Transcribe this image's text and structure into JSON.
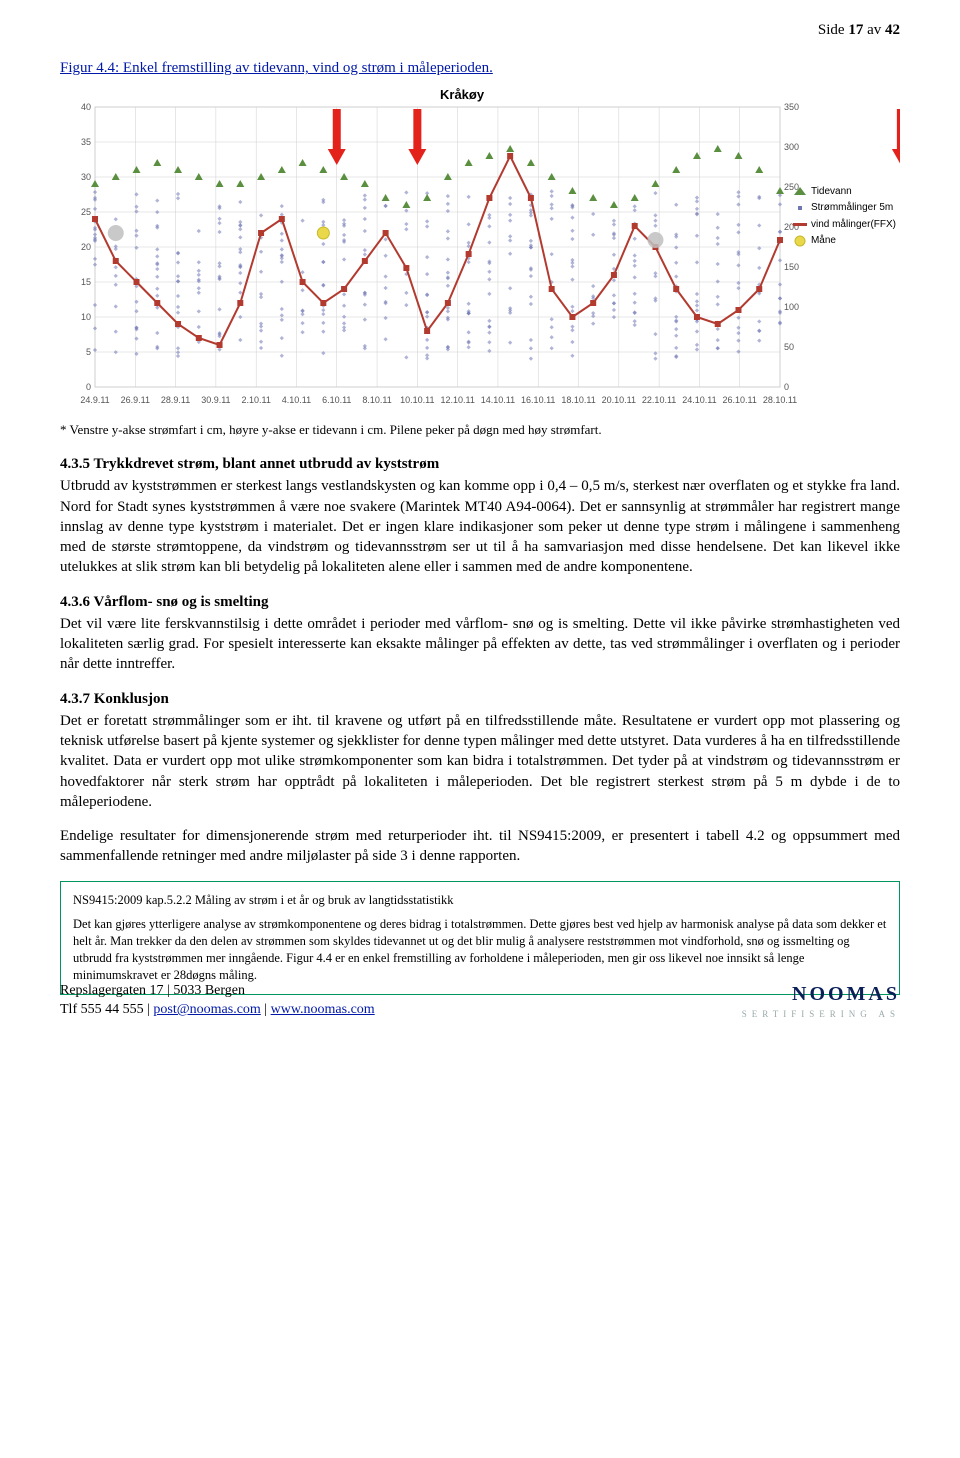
{
  "header": {
    "text_prefix": "Side ",
    "current": "17",
    "middle": " av ",
    "total": "42"
  },
  "figure": {
    "caption": "Figur 4.4: Enkel fremstilling av tidevann, vind og strøm i måleperioden.",
    "title": "Kråkøy",
    "note": "* Venstre y-akse strømfart i cm, høyre y-akse er tidevann i cm. Pilene peker på døgn med høy strømfart.",
    "chart": {
      "type": "line+scatter",
      "background_color": "#ffffff",
      "grid_color": "#cfcfcf",
      "left_axis": {
        "label": "",
        "min": 0,
        "max": 40,
        "ticks": [
          0,
          5,
          10,
          15,
          20,
          25,
          30,
          35,
          40
        ]
      },
      "right_axis": {
        "label": "",
        "min": 0,
        "max": 350,
        "ticks": [
          0,
          50,
          100,
          150,
          200,
          250,
          300,
          350
        ]
      },
      "x_labels": [
        "24.9.11",
        "26.9.11",
        "28.9.11",
        "30.9.11",
        "2.10.11",
        "4.10.11",
        "6.10.11",
        "8.10.11",
        "10.10.11",
        "12.10.11",
        "14.10.11",
        "16.10.11",
        "18.10.11",
        "20.10.11",
        "22.10.11",
        "24.10.11",
        "26.10.11",
        "28.10.11"
      ],
      "series": {
        "tidevann": {
          "label": "Tidevann",
          "color": "#5a8f3f",
          "marker": "triangle",
          "marker_size": 5,
          "y": [
            29,
            30,
            31,
            32,
            31,
            30,
            29,
            29,
            30,
            31,
            32,
            31,
            30,
            29,
            27,
            26,
            27,
            30,
            32,
            33,
            34,
            32,
            30,
            28,
            27,
            26,
            27,
            29,
            31,
            33,
            34,
            33,
            31,
            28
          ]
        },
        "strom5m": {
          "label": "Strømmålinger 5m",
          "color": "#6f76b4",
          "marker": "scatter-band",
          "band_top": 28,
          "band_bottom": 4
        },
        "vind": {
          "label": "vind målinger(FFX)",
          "color": "#b23a2f",
          "marker": "square",
          "line_width": 2,
          "y": [
            24,
            18,
            15,
            12,
            9,
            7,
            6,
            12,
            22,
            24,
            15,
            12,
            14,
            18,
            22,
            17,
            8,
            12,
            19,
            27,
            33,
            27,
            14,
            10,
            12,
            16,
            23,
            20,
            14,
            10,
            9,
            11,
            14,
            21
          ]
        },
        "moon": {
          "label": "Måne",
          "color": "#e9d94a",
          "marker": "circle",
          "size": 12,
          "points": [
            {
              "x": 11,
              "y": 22
            }
          ]
        },
        "grey_circles": {
          "color": "#bfbfbf",
          "size": 16,
          "points": [
            {
              "x": 1,
              "y": 22
            },
            {
              "x": 27,
              "y": 21
            }
          ]
        }
      },
      "arrows": {
        "color": "#e3231b",
        "x_positions": [
          6,
          8,
          20
        ]
      }
    }
  },
  "sections": {
    "s435": {
      "title": "4.3.5 Trykkdrevet strøm, blant annet utbrudd av kyststrøm",
      "body": "Utbrudd av kyststrømmen er sterkest langs vestlandskysten og kan komme opp i 0,4 – 0,5 m/s, sterkest nær overflaten og et stykke fra land. Nord for Stadt synes kyststrømmen å være noe svakere (Marintek MT40 A94-0064). Det er sannsynlig at strømmåler har registrert mange innslag av denne type kyststrøm i materialet. Det er ingen klare indikasjoner som peker ut denne type strøm i målingene i sammenheng med de største strømtoppene, da vindstrøm og tidevannsstrøm ser ut til å ha samvariasjon med disse hendelsene. Det kan likevel ikke utelukkes at slik strøm kan bli betydelig på lokaliteten alene eller i sammen med de andre komponentene."
    },
    "s436": {
      "title": "4.3.6 Vårflom- snø og is smelting",
      "body": "Det vil være lite ferskvannstilsig i dette området i perioder med vårflom- snø og is smelting. Dette vil ikke påvirke strømhastigheten ved lokaliteten særlig grad. For spesielt interesserte kan eksakte målinger på effekten av dette, tas ved strømmålinger i overflaten og i perioder når dette inntreffer."
    },
    "s437": {
      "title": "4.3.7 Konklusjon",
      "body": "Det er foretatt strømmålinger som er iht. til kravene og utført på en tilfredsstillende måte. Resultatene er vurdert opp mot plassering og teknisk utførelse basert på kjente systemer og sjekklister for denne typen målinger med dette utstyret. Data vurderes å ha en tilfredsstillende kvalitet. Data er vurdert opp mot ulike strømkomponenter som kan bidra i totalstrømmen. Det tyder på at vindstrøm og tidevannsstrøm er hovedfaktorer når sterk strøm har opptrådt på lokaliteten i måleperioden. Det ble registrert sterkest strøm på 5 m dybde i de to måleperiodene."
    },
    "closing": {
      "body": "Endelige resultater for dimensjonerende strøm med returperioder iht. til NS9415:2009, er presentert i tabell 4.2 og oppsummert med sammenfallende retninger med andre miljølaster på side 3 i denne rapporten."
    }
  },
  "box": {
    "title": "NS9415:2009 kap.5.2.2 Måling av strøm i et år og bruk av langtidsstatistikk",
    "body": "Det kan gjøres ytterligere analyse av strømkomponentene og deres bidrag i totalstrømmen. Dette gjøres best ved hjelp av harmonisk analyse på data som dekker et helt år. Man trekker da den delen av strømmen som skyldes tidevannet ut og det blir mulig å analysere reststrømmen mot vindforhold, snø og issmelting og utbrudd fra kyststrømmen mer inngående. Figur 4.4 er en enkel fremstilling av forholdene i måleperioden, men gir oss likevel noe innsikt så lenge minimumskravet er 28døgns måling."
  },
  "footer": {
    "line1": "Repslagergaten 17 | 5033 Bergen",
    "line2_prefix": "Tlf 555 44 555 | ",
    "email": "post@noomas.com",
    "sep": " | ",
    "web": "www.noomas.com",
    "logo": "NOOMAS",
    "logo_sub": "SERTIFISERING AS"
  }
}
